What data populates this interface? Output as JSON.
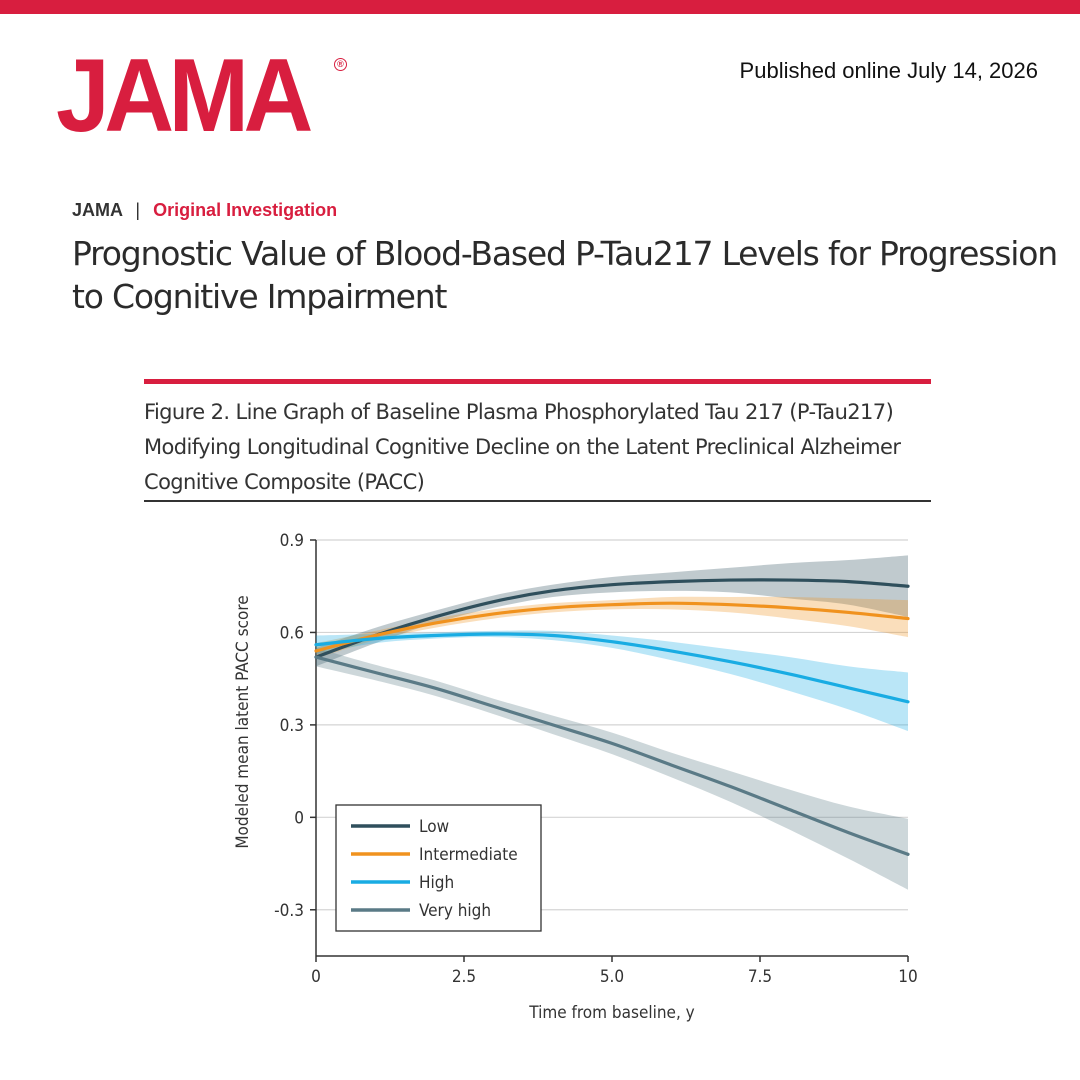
{
  "header": {
    "logo_text": "JAMA",
    "logo_mark": "®",
    "published": "Published online July 14, 2026"
  },
  "article": {
    "journal": "JAMA",
    "separator": "|",
    "type": "Original Investigation",
    "title": "Prognostic Value of Blood-Based P-Tau217 Levels for Progression to Cognitive Impairment"
  },
  "figure": {
    "caption": "Figure 2. Line Graph of Baseline Plasma Phosphorylated Tau 217 (P-Tau217) Modifying Longitudinal Cognitive Decline on the Latent Preclinical Alzheimer Cognitive Composite (PACC)"
  },
  "chart_data": {
    "type": "line",
    "xlabel": "Time from baseline, y",
    "ylabel": "Modeled mean latent PACC score",
    "xlim": [
      0,
      10
    ],
    "ylim": [
      -0.45,
      0.9
    ],
    "xticks": [
      0,
      2.5,
      5.0,
      7.5,
      10
    ],
    "xtick_labels": [
      "0",
      "2.5",
      "5.0",
      "7.5",
      "10"
    ],
    "yticks": [
      0.9,
      0.6,
      0.3,
      0,
      -0.3
    ],
    "ytick_labels": [
      "0.9",
      "0.6",
      "0.3",
      "0",
      "-0.3"
    ],
    "grid": "horizontal",
    "legend_position": "lower-left",
    "x": [
      0,
      1,
      2,
      3,
      4,
      5,
      6,
      7,
      8,
      9,
      10
    ],
    "series": [
      {
        "name": "Low",
        "color": "#2f4f5c",
        "values": [
          0.52,
          0.59,
          0.65,
          0.7,
          0.735,
          0.755,
          0.765,
          0.77,
          0.77,
          0.765,
          0.75
        ],
        "lower": [
          0.49,
          0.565,
          0.63,
          0.68,
          0.715,
          0.73,
          0.735,
          0.73,
          0.71,
          0.69,
          0.65
        ],
        "upper": [
          0.55,
          0.615,
          0.67,
          0.72,
          0.755,
          0.78,
          0.795,
          0.81,
          0.825,
          0.835,
          0.85
        ]
      },
      {
        "name": "Intermediate",
        "color": "#f0921e",
        "values": [
          0.54,
          0.59,
          0.63,
          0.66,
          0.68,
          0.69,
          0.695,
          0.69,
          0.68,
          0.665,
          0.645
        ],
        "lower": [
          0.515,
          0.575,
          0.615,
          0.645,
          0.665,
          0.675,
          0.675,
          0.665,
          0.645,
          0.62,
          0.585
        ],
        "upper": [
          0.565,
          0.605,
          0.645,
          0.675,
          0.695,
          0.705,
          0.715,
          0.715,
          0.715,
          0.71,
          0.705
        ]
      },
      {
        "name": "High",
        "color": "#19ace3",
        "values": [
          0.56,
          0.58,
          0.59,
          0.595,
          0.59,
          0.57,
          0.54,
          0.505,
          0.465,
          0.42,
          0.375
        ],
        "lower": [
          0.53,
          0.565,
          0.58,
          0.585,
          0.575,
          0.55,
          0.51,
          0.465,
          0.41,
          0.35,
          0.28
        ],
        "upper": [
          0.59,
          0.595,
          0.6,
          0.605,
          0.605,
          0.59,
          0.57,
          0.545,
          0.52,
          0.49,
          0.47
        ]
      },
      {
        "name": "Very high",
        "color": "#5a7a86",
        "values": [
          0.52,
          0.47,
          0.42,
          0.36,
          0.3,
          0.24,
          0.17,
          0.1,
          0.025,
          -0.05,
          -0.12
        ],
        "lower": [
          0.49,
          0.445,
          0.395,
          0.335,
          0.27,
          0.205,
          0.13,
          0.05,
          -0.04,
          -0.135,
          -0.235
        ],
        "upper": [
          0.55,
          0.495,
          0.445,
          0.385,
          0.33,
          0.275,
          0.21,
          0.15,
          0.09,
          0.035,
          -0.005
        ]
      }
    ]
  }
}
